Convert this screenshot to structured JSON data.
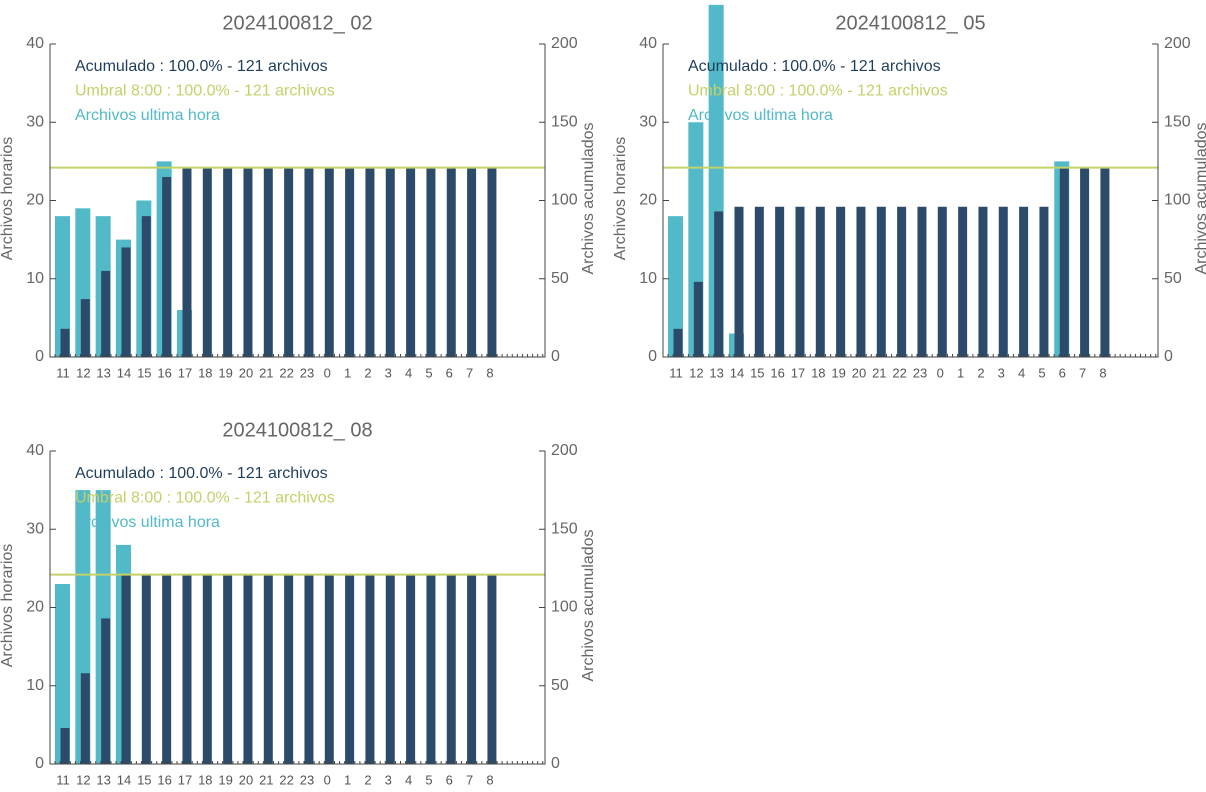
{
  "chart_data": [
    {
      "type": "bar",
      "title": "2024100812_ 02",
      "categories": [
        "11",
        "12",
        "13",
        "14",
        "15",
        "16",
        "17",
        "18",
        "19",
        "20",
        "21",
        "22",
        "23",
        "0",
        "1",
        "2",
        "3",
        "4",
        "5",
        "6",
        "7",
        "8"
      ],
      "series": [
        {
          "name": "Archivos ultima hora",
          "color": "#52b9c8",
          "axis": "y",
          "values": [
            18,
            19,
            18,
            15,
            20,
            25,
            6,
            0,
            0,
            0,
            0,
            0,
            0,
            0,
            0,
            0,
            0,
            0,
            0,
            0,
            0,
            0
          ]
        },
        {
          "name": "Acumulado : 100.0% - 121 archivos",
          "color": "#2c4a6a",
          "axis": "y2",
          "values": [
            18,
            37,
            55,
            70,
            90,
            115,
            121,
            121,
            121,
            121,
            121,
            121,
            121,
            121,
            121,
            121,
            121,
            121,
            121,
            121,
            121,
            121
          ]
        }
      ],
      "threshold": {
        "label": "Umbral 8:00 : 100.0% - 121 archivos",
        "value": 121,
        "axis": "y2",
        "color": "#c6d068"
      },
      "y_label": "Archivos horarios",
      "y2_label": "Archivos acumulados",
      "ylim": [
        0,
        40
      ],
      "yticks": [
        0,
        10,
        20,
        30,
        40
      ],
      "y2lim": [
        0,
        200
      ],
      "y2ticks": [
        0,
        50,
        100,
        150,
        200
      ],
      "legend": "upper left"
    },
    {
      "type": "bar",
      "title": "2024100812_ 05",
      "categories": [
        "11",
        "12",
        "13",
        "14",
        "15",
        "16",
        "17",
        "18",
        "19",
        "20",
        "21",
        "22",
        "23",
        "0",
        "1",
        "2",
        "3",
        "4",
        "5",
        "6",
        "7",
        "8"
      ],
      "series": [
        {
          "name": "Archivos ultima hora",
          "color": "#52b9c8",
          "axis": "y",
          "values": [
            18,
            30,
            45,
            3,
            0,
            0,
            0,
            0,
            0,
            0,
            0,
            0,
            0,
            0,
            0,
            0,
            0,
            0,
            0,
            25,
            0,
            0
          ]
        },
        {
          "name": "Acumulado : 100.0% - 121 archivos",
          "color": "#2c4a6a",
          "axis": "y2",
          "values": [
            18,
            48,
            93,
            96,
            96,
            96,
            96,
            96,
            96,
            96,
            96,
            96,
            96,
            96,
            96,
            96,
            96,
            96,
            96,
            121,
            121,
            121
          ]
        }
      ],
      "threshold": {
        "label": "Umbral 8:00 : 100.0% - 121 archivos",
        "value": 121,
        "axis": "y2",
        "color": "#c6d068"
      },
      "y_label": "Archivos horarios",
      "y2_label": "Archivos acumulados",
      "ylim": [
        0,
        40
      ],
      "yticks": [
        0,
        10,
        20,
        30,
        40
      ],
      "y2lim": [
        0,
        200
      ],
      "y2ticks": [
        0,
        50,
        100,
        150,
        200
      ],
      "legend": "upper left"
    },
    {
      "type": "bar",
      "title": "2024100812_ 08",
      "categories": [
        "11",
        "12",
        "13",
        "14",
        "15",
        "16",
        "17",
        "18",
        "19",
        "20",
        "21",
        "22",
        "23",
        "0",
        "1",
        "2",
        "3",
        "4",
        "5",
        "6",
        "7",
        "8"
      ],
      "series": [
        {
          "name": "Archivos ultima hora",
          "color": "#52b9c8",
          "axis": "y",
          "values": [
            23,
            35,
            35,
            28,
            0,
            0,
            0,
            0,
            0,
            0,
            0,
            0,
            0,
            0,
            0,
            0,
            0,
            0,
            0,
            0,
            0,
            0
          ]
        },
        {
          "name": "Acumulado : 100.0% - 121 archivos",
          "color": "#2c4a6a",
          "axis": "y2",
          "values": [
            23,
            58,
            93,
            121,
            121,
            121,
            121,
            121,
            121,
            121,
            121,
            121,
            121,
            121,
            121,
            121,
            121,
            121,
            121,
            121,
            121,
            121
          ]
        }
      ],
      "threshold": {
        "label": "Umbral 8:00 : 100.0% - 121 archivos",
        "value": 121,
        "axis": "y2",
        "color": "#c6d068"
      },
      "y_label": "Archivos horarios",
      "y2_label": "Archivos acumulados",
      "ylim": [
        0,
        40
      ],
      "yticks": [
        0,
        10,
        20,
        30,
        40
      ],
      "y2lim": [
        0,
        200
      ],
      "y2ticks": [
        0,
        50,
        100,
        150,
        200
      ],
      "legend": "upper left"
    }
  ]
}
